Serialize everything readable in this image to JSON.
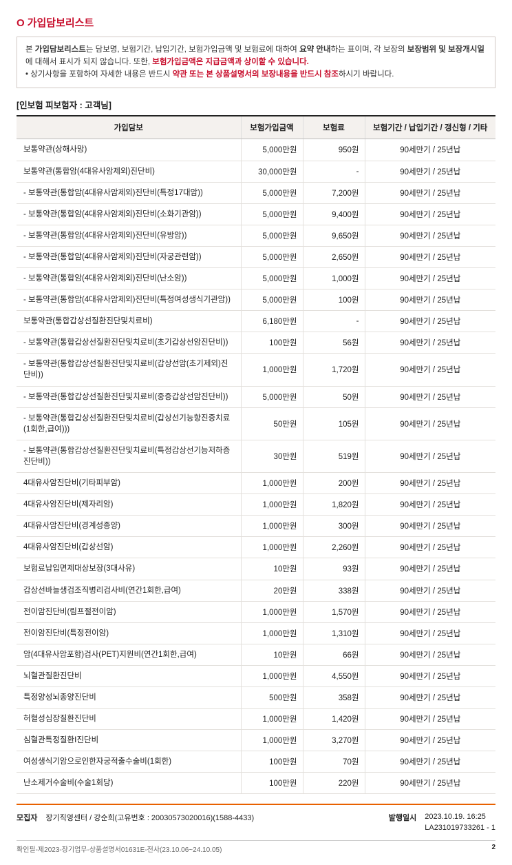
{
  "title": "가입담보리스트",
  "intro": {
    "line1_a": "본 ",
    "line1_bold1": "가입담보리스트",
    "line1_b": "는 담보명, 보험기간, 납입기간, 보험가입금액 및 보험료에 대하여 ",
    "line1_bold2": "요약 안내",
    "line1_c": "하는 표이며, 각 보장의 ",
    "line1_bold3": "보장범위 및 보장개시일",
    "line1_d": "에 대해서 표시가 되지 않습니다. 또한, ",
    "line1_red": "보험가입금액은 지급금액과 상이할 수 있습니다.",
    "bullet": "상기사항을 포함하여 자세한 내용은 반드시 ",
    "bullet_red": "약관 또는 본 상품설명서의 보장내용을 반드시 참조",
    "bullet_tail": "하시기 바랍니다."
  },
  "sub_heading": "[인보험 피보험자 : 고객님]",
  "columns": {
    "c1": "가입담보",
    "c2": "보험가입금액",
    "c3": "보험료",
    "c4": "보험기간 / 납입기간 / 갱신형 / 기타"
  },
  "rows": [
    {
      "name": "보통약관(상해사망)",
      "amount": "5,000만원",
      "premium": "950원",
      "period": "90세만기 / 25년납"
    },
    {
      "name": "보통약관(통합암(4대유사암제외)진단비)",
      "amount": "30,000만원",
      "premium": "-",
      "period": "90세만기 / 25년납"
    },
    {
      "name": "- 보통약관(통합암(4대유사암제외)진단비(특정17대암))",
      "amount": "5,000만원",
      "premium": "7,200원",
      "period": "90세만기 / 25년납"
    },
    {
      "name": "- 보통약관(통합암(4대유사암제외)진단비(소화기관암))",
      "amount": "5,000만원",
      "premium": "9,400원",
      "period": "90세만기 / 25년납"
    },
    {
      "name": "- 보통약관(통합암(4대유사암제외)진단비(유방암))",
      "amount": "5,000만원",
      "premium": "9,650원",
      "period": "90세만기 / 25년납"
    },
    {
      "name": "- 보통약관(통합암(4대유사암제외)진단비(자궁관련암))",
      "amount": "5,000만원",
      "premium": "2,650원",
      "period": "90세만기 / 25년납"
    },
    {
      "name": "- 보통약관(통합암(4대유사암제외)진단비(난소암))",
      "amount": "5,000만원",
      "premium": "1,000원",
      "period": "90세만기 / 25년납"
    },
    {
      "name": "- 보통약관(통합암(4대유사암제외)진단비(특정여성생식기관암))",
      "amount": "5,000만원",
      "premium": "100원",
      "period": "90세만기 / 25년납"
    },
    {
      "name": "보통약관(통합갑상선질환진단및치료비)",
      "amount": "6,180만원",
      "premium": "-",
      "period": "90세만기 / 25년납"
    },
    {
      "name": "- 보통약관(통합갑상선질환진단및치료비(초기갑상선암진단비))",
      "amount": "100만원",
      "premium": "56원",
      "period": "90세만기 / 25년납"
    },
    {
      "name": "- 보통약관(통합갑상선질환진단및치료비(갑상선암(초기제외)진단비))",
      "amount": "1,000만원",
      "premium": "1,720원",
      "period": "90세만기 / 25년납"
    },
    {
      "name": "- 보통약관(통합갑상선질환진단및치료비(중증갑상선암진단비))",
      "amount": "5,000만원",
      "premium": "50원",
      "period": "90세만기 / 25년납"
    },
    {
      "name": "- 보통약관(통합갑상선질환진단및치료비(갑상선기능항진증치료(1회한,급여)))",
      "amount": "50만원",
      "premium": "105원",
      "period": "90세만기 / 25년납"
    },
    {
      "name": "- 보통약관(통합갑상선질환진단및치료비(특정갑상선기능저하증진단비))",
      "amount": "30만원",
      "premium": "519원",
      "period": "90세만기 / 25년납"
    },
    {
      "name": "4대유사암진단비(기타피부암)",
      "amount": "1,000만원",
      "premium": "200원",
      "period": "90세만기 / 25년납"
    },
    {
      "name": "4대유사암진단비(제자리암)",
      "amount": "1,000만원",
      "premium": "1,820원",
      "period": "90세만기 / 25년납"
    },
    {
      "name": "4대유사암진단비(경계성종양)",
      "amount": "1,000만원",
      "premium": "300원",
      "period": "90세만기 / 25년납"
    },
    {
      "name": "4대유사암진단비(갑상선암)",
      "amount": "1,000만원",
      "premium": "2,260원",
      "period": "90세만기 / 25년납"
    },
    {
      "name": "보험료납입면제대상보장(3대사유)",
      "amount": "10만원",
      "premium": "93원",
      "period": "90세만기 / 25년납"
    },
    {
      "name": "갑상선바늘생검조직병리검사비(연간1회한,급여)",
      "amount": "20만원",
      "premium": "338원",
      "period": "90세만기 / 25년납"
    },
    {
      "name": "전이암진단비(림프절전이암)",
      "amount": "1,000만원",
      "premium": "1,570원",
      "period": "90세만기 / 25년납"
    },
    {
      "name": "전이암진단비(특정전이암)",
      "amount": "1,000만원",
      "premium": "1,310원",
      "period": "90세만기 / 25년납"
    },
    {
      "name": "암(4대유사암포함)검사(PET)지원비(연간1회한,급여)",
      "amount": "10만원",
      "premium": "66원",
      "period": "90세만기 / 25년납"
    },
    {
      "name": "뇌혈관질환진단비",
      "amount": "1,000만원",
      "premium": "4,550원",
      "period": "90세만기 / 25년납"
    },
    {
      "name": "특정양성뇌종양진단비",
      "amount": "500만원",
      "premium": "358원",
      "period": "90세만기 / 25년납"
    },
    {
      "name": "허혈성심장질환진단비",
      "amount": "1,000만원",
      "premium": "1,420원",
      "period": "90세만기 / 25년납"
    },
    {
      "name": "심혈관특정질환Ⅰ진단비",
      "amount": "1,000만원",
      "premium": "3,270원",
      "period": "90세만기 / 25년납"
    },
    {
      "name": "여성생식기암으로인한자궁적출수술비(1회한)",
      "amount": "100만원",
      "premium": "70원",
      "period": "90세만기 / 25년납"
    },
    {
      "name": "난소제거수술비(수술1회당)",
      "amount": "100만원",
      "premium": "220원",
      "period": "90세만기 / 25년납"
    }
  ],
  "footer": {
    "recruiter_label": "모집자",
    "recruiter_value": "장기직영센터 / 강순희(고유번호 : 20030573020016)(1588-4433)",
    "issued_label": "발행일시",
    "issued_line1": "2023.10.19. 16:25",
    "issued_line2": "LA231019733261 - 1"
  },
  "doc_foot": {
    "left": "확인필-제2023-장기업무-상품설명서01631E-전사(23.10.06~24.10.05)",
    "page": "2"
  }
}
